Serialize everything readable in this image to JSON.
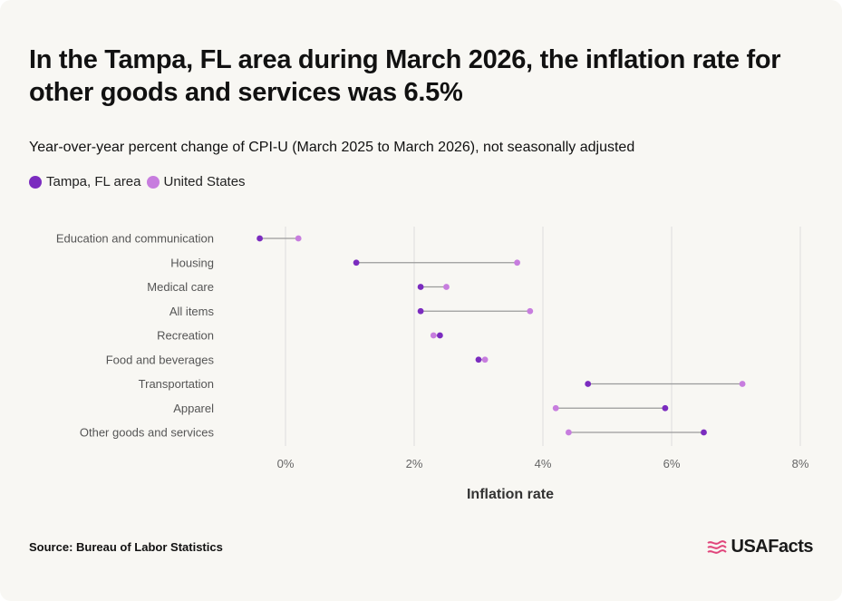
{
  "title": "In the Tampa, FL area during March 2026, the inflation rate for other goods and services was 6.5%",
  "subtitle": "Year-over-year percent change of CPI-U (March 2025 to March 2026), not seasonally adjusted",
  "source": "Source: Bureau of Labor Statistics",
  "brand": "USAFacts",
  "colors": {
    "tampa": "#7b2cbf",
    "us": "#c77dde",
    "connector": "#9a9a9a",
    "grid": "#dedede"
  },
  "chart_data": {
    "type": "dumbbell",
    "xlabel": "Inflation rate",
    "xlim": [
      -1,
      8
    ],
    "x_ticks": [
      0,
      2,
      4,
      6,
      8
    ],
    "x_tick_labels": [
      "0%",
      "2%",
      "4%",
      "6%",
      "8%"
    ],
    "legend": [
      {
        "name": "Tampa, FL area",
        "color": "#7b2cbf"
      },
      {
        "name": "United States",
        "color": "#c77dde"
      }
    ],
    "categories": [
      "Education and communication",
      "Housing",
      "Medical care",
      "All items",
      "Recreation",
      "Food and beverages",
      "Transportation",
      "Apparel",
      "Other goods and services"
    ],
    "series": [
      {
        "name": "Tampa, FL area",
        "values": [
          -0.4,
          1.1,
          2.1,
          2.1,
          2.4,
          3.0,
          4.7,
          5.9,
          6.5
        ]
      },
      {
        "name": "United States",
        "values": [
          0.2,
          3.6,
          2.5,
          3.8,
          2.3,
          3.1,
          7.1,
          4.2,
          4.4
        ]
      }
    ]
  }
}
